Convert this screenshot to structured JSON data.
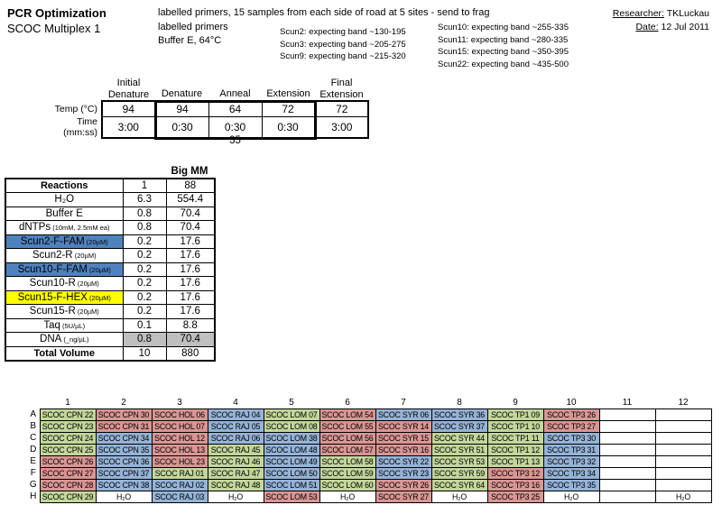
{
  "colors": {
    "green": "#c3d69b",
    "red": "#d99694",
    "blue": "#95b3d7",
    "mixblue": "#4f81bd",
    "yellow": "#ffff00",
    "gray": "#bfbfbf"
  },
  "header": {
    "title": "PCR Optimization",
    "subtitle": "SCOC Multiplex 1",
    "note_line1": "labelled primers, 15 samples from each side of road at 5 sites - send to frag",
    "note_line2": "labelled primers",
    "note_line3": "Buffer E, 64°C",
    "bands_left": [
      "Scun2: expecting band ~130-195",
      "Scun3: expecting band ~205-275",
      "Scun9: expecting band ~215-320"
    ],
    "bands_right": [
      "Scun10: expecting band ~255-335",
      "Scun11: expecting band ~280-335",
      "Scun15: expecting band ~350-395",
      "Scun22: expecting band ~435-500"
    ],
    "researcher_label": "Researcher:",
    "researcher": "TKLuckau",
    "date_label": "Date:",
    "date": "12 Jul 2011"
  },
  "cycle_table": {
    "columns": [
      {
        "l1": "Initial",
        "l2": "Denature"
      },
      {
        "l1": "",
        "l2": "Denature"
      },
      {
        "l1": "",
        "l2": "Anneal"
      },
      {
        "l1": "",
        "l2": "Extension"
      },
      {
        "l1": "Final",
        "l2": "Extension"
      }
    ],
    "row_labels": [
      "Temp (°C)",
      "Time (mm:ss)"
    ],
    "temps": [
      "94",
      "94",
      "64",
      "72",
      "72"
    ],
    "times": [
      "3:00",
      "0:30",
      "0:30",
      "0:30",
      "3:00"
    ],
    "cycles": "35"
  },
  "mix_table": {
    "header": "Big MM",
    "rows": [
      {
        "label": "Reactions",
        "sub": "",
        "v1": "1",
        "v2": "88",
        "bold": true
      },
      {
        "label": "H₂O",
        "sub": "",
        "v1": "6.3",
        "v2": "554.4"
      },
      {
        "label": "Buffer E",
        "sub": "",
        "v1": "0.8",
        "v2": "70.4"
      },
      {
        "label": "dNTPs",
        "sub": "(10mM, 2.5mM ea)",
        "v1": "0.8",
        "v2": "70.4"
      },
      {
        "label": "Scun2-F-FAM",
        "sub": "(20µM)",
        "v1": "0.2",
        "v2": "17.6",
        "hl": "mixblue"
      },
      {
        "label": "Scun2-R",
        "sub": "(20µM)",
        "v1": "0.2",
        "v2": "17.6"
      },
      {
        "label": "Scun10-F-FAM",
        "sub": "(20µM)",
        "v1": "0.2",
        "v2": "17.6",
        "hl": "mixblue"
      },
      {
        "label": "Scun10-R",
        "sub": "(20µM)",
        "v1": "0.2",
        "v2": "17.6"
      },
      {
        "label": "Scun15-F-HEX",
        "sub": "(20µM)",
        "v1": "0.2",
        "v2": "17.6",
        "hl": "yellow"
      },
      {
        "label": "Scun15-R",
        "sub": "(20µM)",
        "v1": "0.2",
        "v2": "17.6"
      },
      {
        "label": "Taq",
        "sub": "(5U/µL)",
        "v1": "0.1",
        "v2": "8.8"
      },
      {
        "label": "DNA",
        "sub": "(_ng/µL)",
        "v1": "0.8",
        "v2": "70.4",
        "vbg": "gray"
      },
      {
        "label": "Total Volume",
        "sub": "",
        "v1": "10",
        "v2": "880",
        "bold": true
      }
    ]
  },
  "plate": {
    "col_headers": [
      "1",
      "2",
      "3",
      "4",
      "5",
      "6",
      "7",
      "8",
      "9",
      "10",
      "11",
      "12"
    ],
    "rows": [
      {
        "label": "A",
        "cells": [
          {
            "t": "SCOC CPN 22",
            "c": "green"
          },
          {
            "t": "SCOC CPN 30",
            "c": "red"
          },
          {
            "t": "SCOC HOL 06",
            "c": "red"
          },
          {
            "t": "SCOC RAJ 04",
            "c": "blue"
          },
          {
            "t": "SCOC LOM 07",
            "c": "green"
          },
          {
            "t": "SCOC LOM 54",
            "c": "red"
          },
          {
            "t": "SCOC SYR 06",
            "c": "blue"
          },
          {
            "t": "SCOC SYR 36",
            "c": "blue"
          },
          {
            "t": "SCOC TP1 09",
            "c": "green"
          },
          {
            "t": "SCOC TP3 26",
            "c": "red"
          },
          {
            "t": "",
            "c": ""
          },
          {
            "t": "",
            "c": ""
          }
        ]
      },
      {
        "label": "B",
        "cells": [
          {
            "t": "SCOC CPN 23",
            "c": "green"
          },
          {
            "t": "SCOC CPN 31",
            "c": "red"
          },
          {
            "t": "SCOC HOL 07",
            "c": "red"
          },
          {
            "t": "SCOC RAJ 05",
            "c": "blue"
          },
          {
            "t": "SCOC LOM 08",
            "c": "green"
          },
          {
            "t": "SCOC LOM 55",
            "c": "red"
          },
          {
            "t": "SCOC SYR 14",
            "c": "red"
          },
          {
            "t": "SCOC SYR 37",
            "c": "blue"
          },
          {
            "t": "SCOC TP1 10",
            "c": "green"
          },
          {
            "t": "SCOC TP3 27",
            "c": "red"
          },
          {
            "t": "",
            "c": ""
          },
          {
            "t": "",
            "c": ""
          }
        ]
      },
      {
        "label": "C",
        "cells": [
          {
            "t": "SCOC CPN 24",
            "c": "green"
          },
          {
            "t": "SCOC CPN 34",
            "c": "blue"
          },
          {
            "t": "SCOC HOL 12",
            "c": "red"
          },
          {
            "t": "SCOC RAJ 06",
            "c": "blue"
          },
          {
            "t": "SCOC LOM 38",
            "c": "blue"
          },
          {
            "t": "SCOC LOM 56",
            "c": "red"
          },
          {
            "t": "SCOC SYR 15",
            "c": "red"
          },
          {
            "t": "SCOC SYR 44",
            "c": "green"
          },
          {
            "t": "SCOC TP1 11",
            "c": "green"
          },
          {
            "t": "SCOC TP3 30",
            "c": "blue"
          },
          {
            "t": "",
            "c": ""
          },
          {
            "t": "",
            "c": ""
          }
        ]
      },
      {
        "label": "D",
        "cells": [
          {
            "t": "SCOC CPN 25",
            "c": "green"
          },
          {
            "t": "SCOC CPN 35",
            "c": "blue"
          },
          {
            "t": "SCOC HOL 13",
            "c": "red"
          },
          {
            "t": "SCOC RAJ 45",
            "c": "green"
          },
          {
            "t": "SCOC LOM 48",
            "c": "blue"
          },
          {
            "t": "SCOC LOM 57",
            "c": "red"
          },
          {
            "t": "SCOC SYR 16",
            "c": "red"
          },
          {
            "t": "SCOC SYR 51",
            "c": "green"
          },
          {
            "t": "SCOC TP1 12",
            "c": "green"
          },
          {
            "t": "SCOC TP3 31",
            "c": "blue"
          },
          {
            "t": "",
            "c": ""
          },
          {
            "t": "",
            "c": ""
          }
        ]
      },
      {
        "label": "E",
        "cells": [
          {
            "t": "SCOC CPN 26",
            "c": "red"
          },
          {
            "t": "SCOC CPN 36",
            "c": "blue"
          },
          {
            "t": "SCOC HOL 23",
            "c": "red"
          },
          {
            "t": "SCOC RAJ 46",
            "c": "green"
          },
          {
            "t": "SCOC LOM 49",
            "c": "blue"
          },
          {
            "t": "SCOC LOM 58",
            "c": "green"
          },
          {
            "t": "SCOC SYR 22",
            "c": "blue"
          },
          {
            "t": "SCOC SYR 53",
            "c": "green"
          },
          {
            "t": "SCOC TP1 13",
            "c": "green"
          },
          {
            "t": "SCOC TP3 32",
            "c": "blue"
          },
          {
            "t": "",
            "c": ""
          },
          {
            "t": "",
            "c": ""
          }
        ]
      },
      {
        "label": "F",
        "cells": [
          {
            "t": "SCOC CPN 27",
            "c": "red"
          },
          {
            "t": "SCOC CPN 37",
            "c": "blue"
          },
          {
            "t": "SCOC RAJ 01",
            "c": "green"
          },
          {
            "t": "SCOC RAJ 47",
            "c": "green"
          },
          {
            "t": "SCOC LOM 50",
            "c": "blue"
          },
          {
            "t": "SCOC LOM 59",
            "c": "green"
          },
          {
            "t": "SCOC SYR 23",
            "c": "blue"
          },
          {
            "t": "SCOC SYR 59",
            "c": "green"
          },
          {
            "t": "SCOC TP3 12",
            "c": "red"
          },
          {
            "t": "SCOC TP3 34",
            "c": "blue"
          },
          {
            "t": "",
            "c": ""
          },
          {
            "t": "",
            "c": ""
          }
        ]
      },
      {
        "label": "G",
        "cells": [
          {
            "t": "SCOC CPN 28",
            "c": "red"
          },
          {
            "t": "SCOC CPN 38",
            "c": "blue"
          },
          {
            "t": "SCOC RAJ 02",
            "c": "blue"
          },
          {
            "t": "SCOC RAJ 48",
            "c": "green"
          },
          {
            "t": "SCOC LOM 51",
            "c": "blue"
          },
          {
            "t": "SCOC LOM 60",
            "c": "green"
          },
          {
            "t": "SCOC SYR 26",
            "c": "red"
          },
          {
            "t": "SCOC SYR 64",
            "c": "green"
          },
          {
            "t": "SCOC TP3 16",
            "c": "red"
          },
          {
            "t": "SCOC TP3 35",
            "c": "blue"
          },
          {
            "t": "",
            "c": ""
          },
          {
            "t": "",
            "c": ""
          }
        ]
      },
      {
        "label": "H",
        "cells": [
          {
            "t": "SCOC CPN 29",
            "c": "green"
          },
          {
            "t": "H₂O",
            "c": ""
          },
          {
            "t": "SCOC RAJ 03",
            "c": "blue"
          },
          {
            "t": "H₂O",
            "c": ""
          },
          {
            "t": "SCOC LOM 53",
            "c": "red"
          },
          {
            "t": "H₂O",
            "c": ""
          },
          {
            "t": "SCOC SYR 27",
            "c": "red"
          },
          {
            "t": "H₂O",
            "c": ""
          },
          {
            "t": "SCOC TP3 25",
            "c": "red"
          },
          {
            "t": "H₂O",
            "c": ""
          },
          {
            "t": "",
            "c": ""
          },
          {
            "t": "H₂O",
            "c": ""
          }
        ]
      }
    ]
  }
}
